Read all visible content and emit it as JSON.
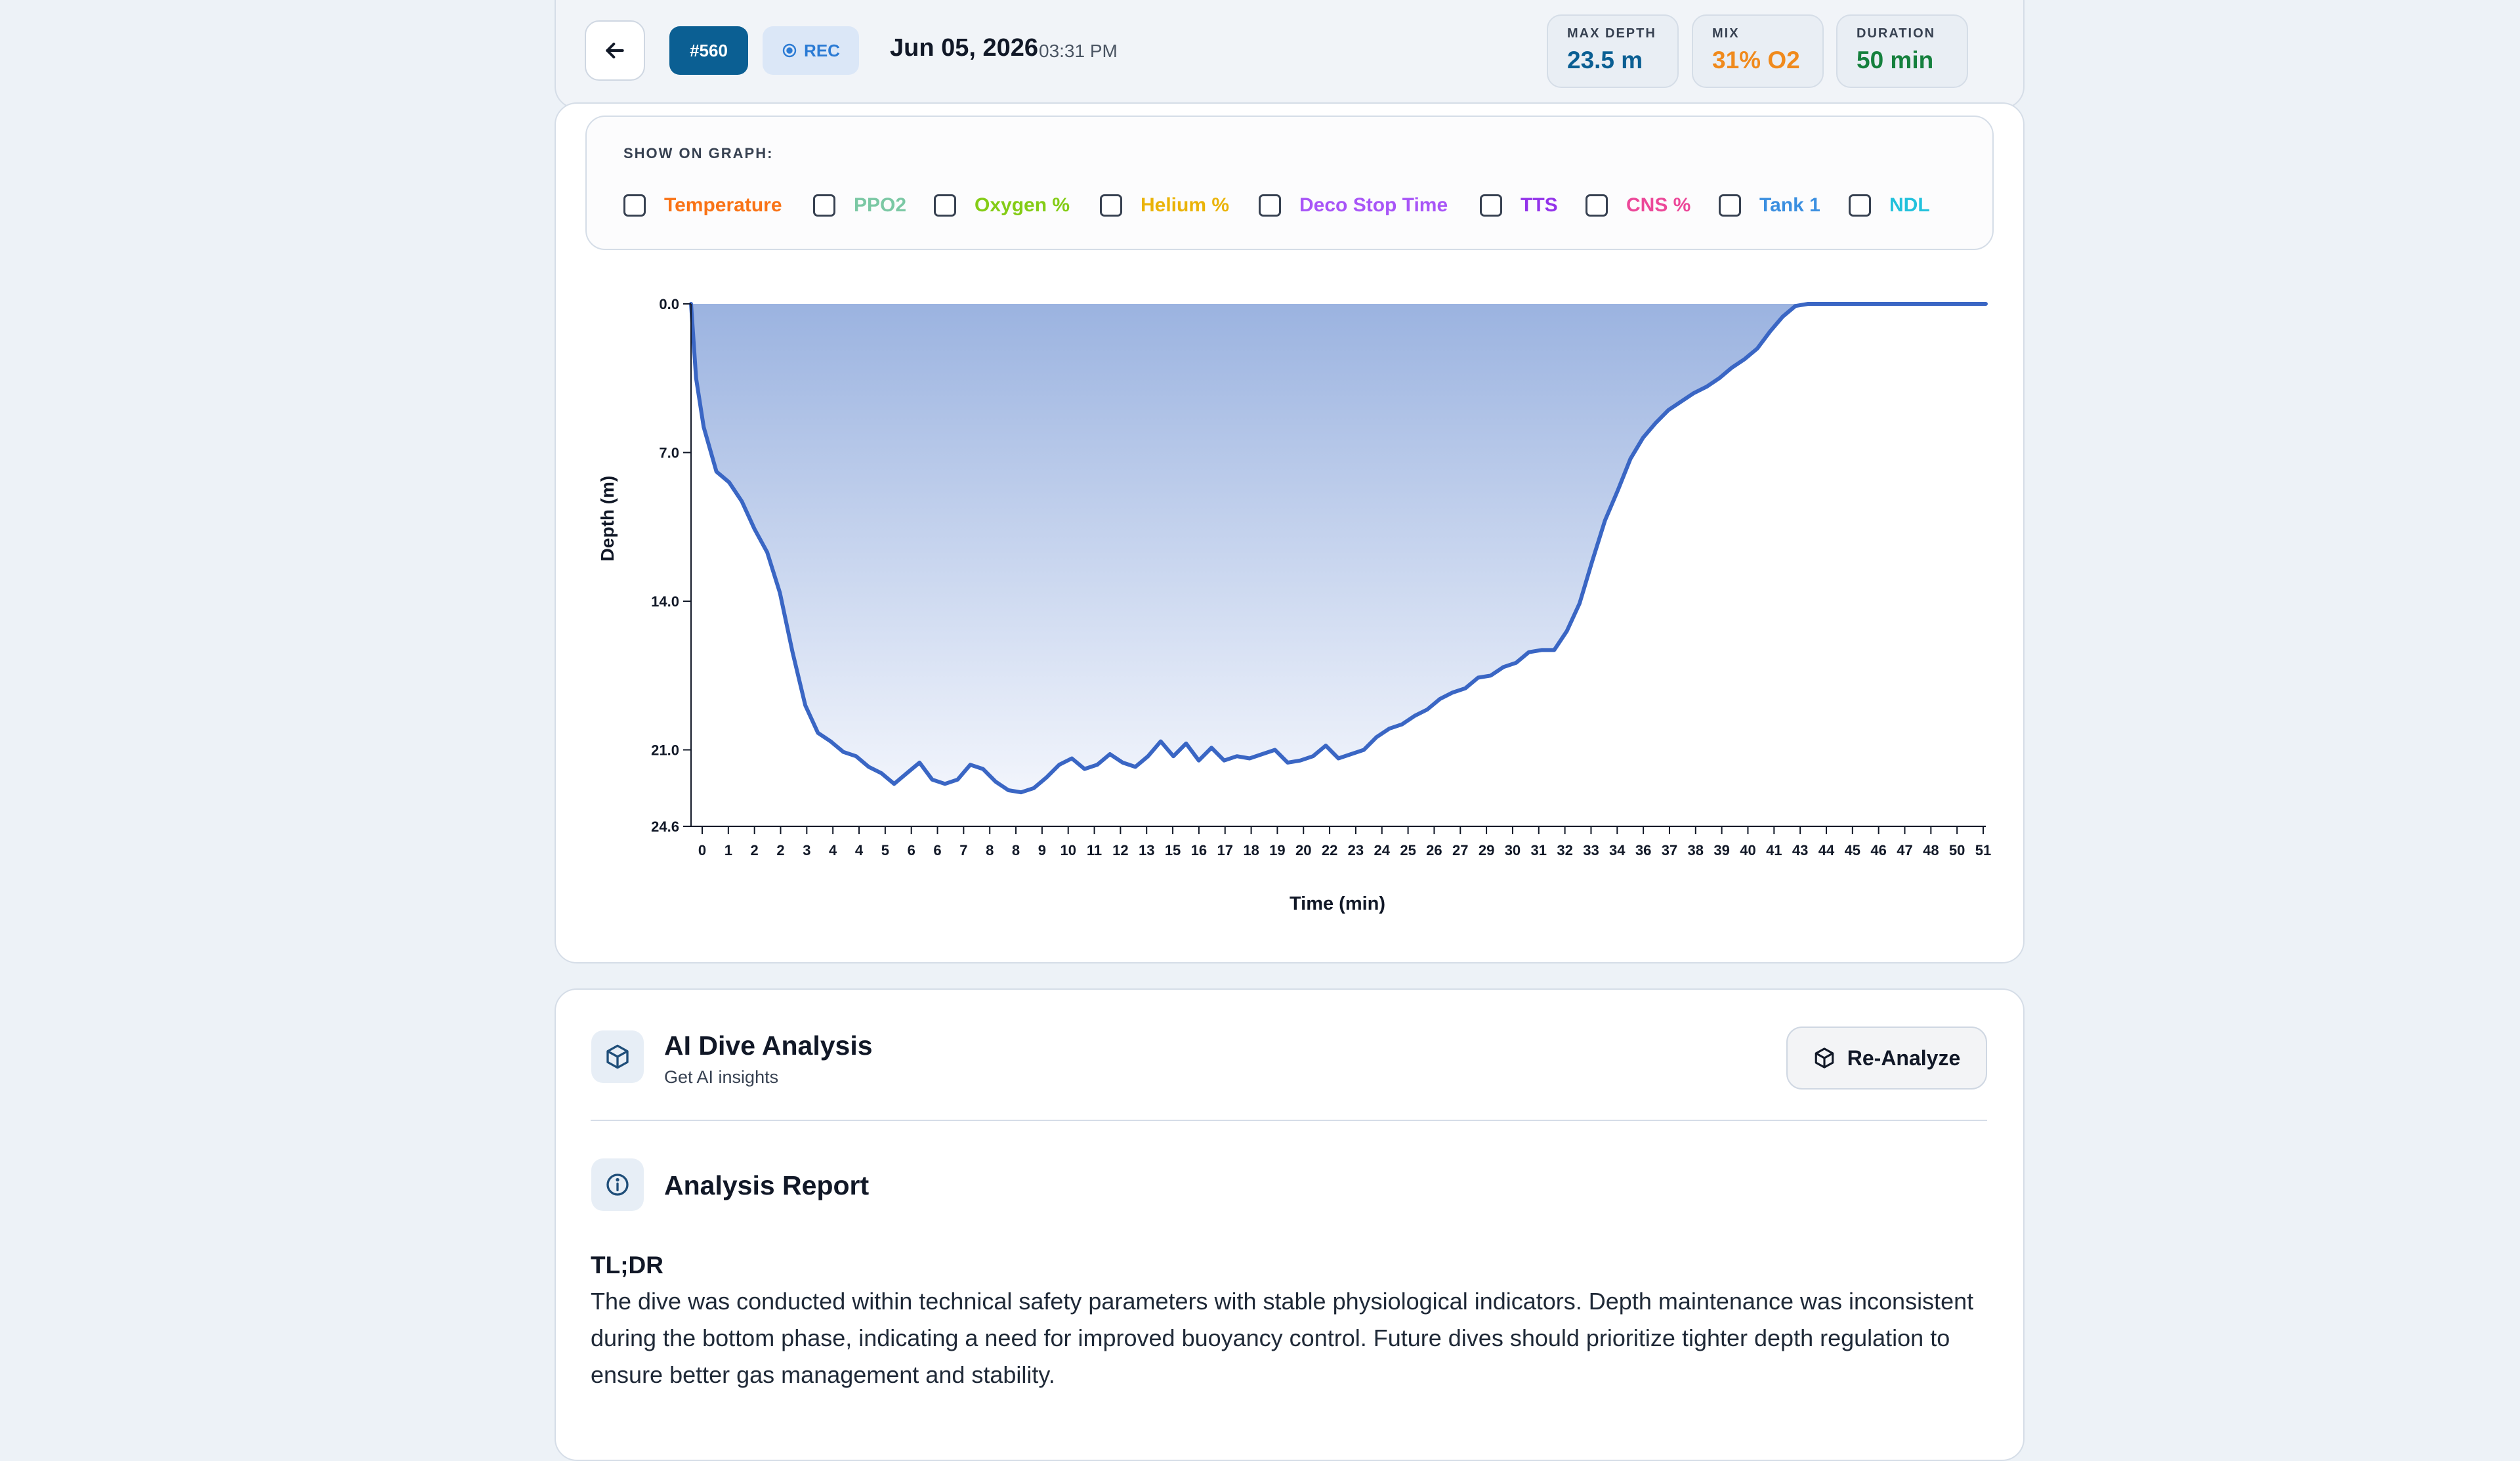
{
  "header": {
    "dive_id": "#560",
    "rec_label": "REC",
    "date": "Jun 05, 2026",
    "time": "03:31 PM",
    "stats": [
      {
        "label": "MAX DEPTH",
        "value": "23.5 m",
        "color": "#0b5f93"
      },
      {
        "label": "MIX",
        "value": "31% O2",
        "color": "#f08a1c"
      },
      {
        "label": "DURATION",
        "value": "50 min",
        "color": "#15803d"
      }
    ]
  },
  "legend": {
    "title": "SHOW ON GRAPH:",
    "items": [
      {
        "label": "Temperature",
        "color": "#f97316",
        "checked": false
      },
      {
        "label": "PPO2",
        "color": "#7bc8a4",
        "checked": false
      },
      {
        "label": "Oxygen %",
        "color": "#84cc16",
        "checked": false
      },
      {
        "label": "Helium %",
        "color": "#eab308",
        "checked": false
      },
      {
        "label": "Deco Stop Time",
        "color": "#a855f7",
        "checked": false
      },
      {
        "label": "TTS",
        "color": "#9333ea",
        "checked": false
      },
      {
        "label": "CNS %",
        "color": "#ec4899",
        "checked": false
      },
      {
        "label": "Tank 1",
        "color": "#3b8fe0",
        "checked": false
      },
      {
        "label": "NDL",
        "color": "#22c1dc",
        "checked": false
      }
    ]
  },
  "chart_data": {
    "type": "area",
    "xlabel": "Time (min)",
    "ylabel": "Depth (m)",
    "y_inverted": true,
    "ylim": [
      0,
      24.6
    ],
    "y_ticks": [
      "0.0",
      "7.0",
      "14.0",
      "21.0",
      "24.6"
    ],
    "x_tick_labels": [
      "0",
      "1",
      "2",
      "2",
      "3",
      "4",
      "4",
      "5",
      "6",
      "6",
      "7",
      "8",
      "8",
      "9",
      "10",
      "11",
      "12",
      "13",
      "15",
      "16",
      "17",
      "18",
      "19",
      "20",
      "22",
      "23",
      "24",
      "25",
      "26",
      "27",
      "29",
      "30",
      "31",
      "32",
      "33",
      "34",
      "36",
      "37",
      "38",
      "39",
      "40",
      "41",
      "43",
      "44",
      "45",
      "46",
      "47",
      "48",
      "50",
      "51"
    ],
    "line_color": "#3a66c4",
    "fill_color_top": "#9bb3e0",
    "fill_color_bottom": "#f2f5fc",
    "series": [
      {
        "x": [
          0,
          0.2,
          0.5,
          1,
          1.5,
          2,
          2.5,
          3,
          3.5,
          4,
          4.5,
          5,
          5.5,
          6,
          6.5,
          7,
          7.5,
          8,
          8.5,
          9,
          9.5,
          10,
          10.5,
          11,
          11.5,
          12,
          12.5,
          13,
          13.5,
          14,
          14.5,
          15,
          15.5,
          16,
          16.5,
          17,
          17.5,
          18,
          18.5,
          19,
          19.5,
          20,
          20.5,
          21,
          21.5,
          22,
          22.5,
          23,
          23.5,
          24,
          24.5,
          25,
          25.5,
          26,
          26.5,
          27,
          27.5,
          28,
          28.5,
          29,
          29.5,
          30,
          30.5,
          31,
          31.5,
          32,
          32.5,
          33,
          33.5,
          34,
          34.5,
          35,
          35.5,
          36,
          36.5,
          37,
          37.5,
          38,
          38.5,
          39,
          39.5,
          40,
          40.5,
          41,
          41.5,
          42,
          42.5,
          43,
          43.5,
          44,
          44.5,
          45,
          45.5,
          46,
          46.5,
          47,
          47.5,
          48,
          48.5,
          49,
          49.5,
          49.8,
          50,
          50.2,
          50.5,
          51
        ],
        "y": [
          0,
          3.5,
          5.8,
          7.9,
          8.4,
          9.3,
          10.6,
          11.7,
          13.6,
          16.4,
          18.9,
          20.2,
          20.6,
          21.1,
          21.3,
          21.8,
          22.1,
          22.6,
          22.1,
          21.6,
          22.4,
          22.6,
          22.4,
          21.7,
          21.9,
          22.5,
          22.9,
          23.0,
          22.8,
          22.3,
          21.7,
          21.4,
          21.9,
          21.7,
          21.2,
          21.6,
          21.8,
          21.3,
          20.6,
          21.3,
          20.7,
          21.5,
          20.9,
          21.5,
          21.3,
          21.4,
          21.2,
          21.0,
          21.6,
          21.5,
          21.3,
          20.8,
          21.4,
          21.2,
          21.0,
          20.4,
          20.0,
          19.8,
          19.4,
          19.1,
          18.6,
          18.3,
          18.1,
          17.6,
          17.5,
          17.1,
          16.9,
          16.4,
          16.3,
          16.3,
          15.4,
          14.1,
          12.1,
          10.2,
          8.8,
          7.3,
          6.3,
          5.6,
          5.0,
          4.6,
          4.2,
          3.9,
          3.5,
          3.0,
          2.6,
          2.1,
          1.3,
          0.6,
          0.1,
          0,
          0,
          0,
          0,
          0,
          0,
          0,
          0,
          0,
          0,
          0,
          0,
          0,
          0,
          0,
          0,
          0
        ]
      }
    ]
  },
  "analysis": {
    "title": "AI Dive Analysis",
    "subtitle": "Get AI insights",
    "reanalyze_label": "Re-Analyze",
    "report_title": "Analysis Report",
    "tldr_label": "TL;DR",
    "tldr_text": "The dive was conducted within technical safety parameters with stable physiological indicators. Depth maintenance was inconsistent during the bottom phase, indicating a need for improved buoyancy control. Future dives should prioritize tighter depth regulation to ensure better gas management and stability."
  }
}
